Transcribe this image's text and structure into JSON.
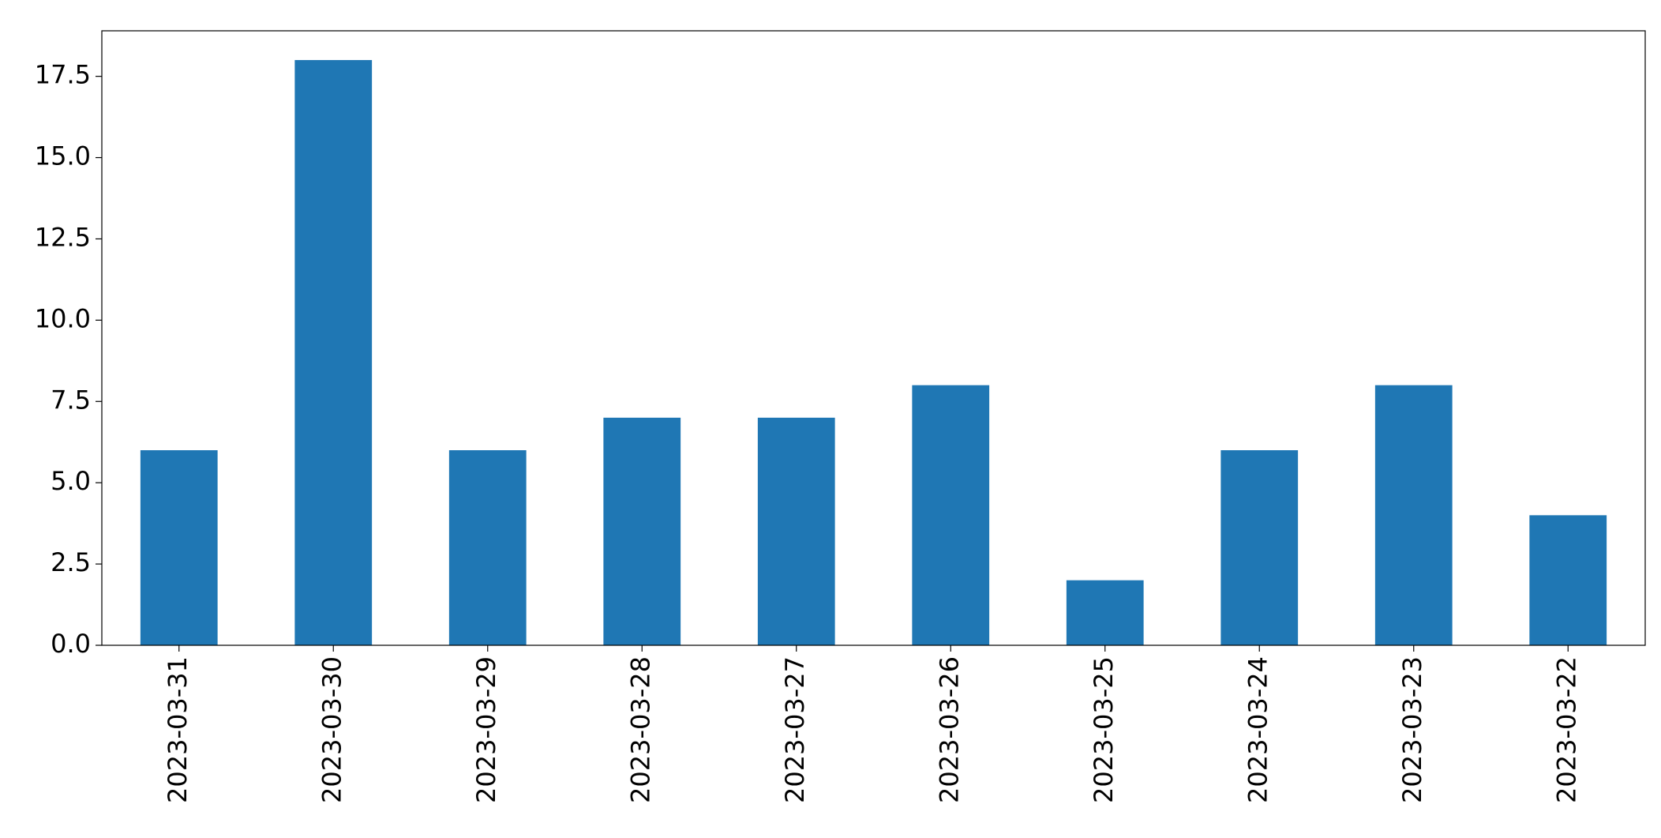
{
  "chart_data": {
    "type": "bar",
    "categories": [
      "2023-03-31",
      "2023-03-30",
      "2023-03-29",
      "2023-03-28",
      "2023-03-27",
      "2023-03-26",
      "2023-03-25",
      "2023-03-24",
      "2023-03-23",
      "2023-03-22"
    ],
    "values": [
      6,
      18,
      6,
      7,
      7,
      8,
      2,
      6,
      8,
      4
    ],
    "color": "#1f77b4",
    "ylim": [
      0,
      18.9
    ],
    "yticks": [
      {
        "value": 0,
        "label": "0.0"
      },
      2.5,
      {
        "value": 5,
        "label": "5.0"
      },
      7.5,
      {
        "value": 10,
        "label": "10.0"
      },
      12.5,
      {
        "value": 15,
        "label": "15.0"
      },
      17.5
    ],
    "grid": false
  }
}
